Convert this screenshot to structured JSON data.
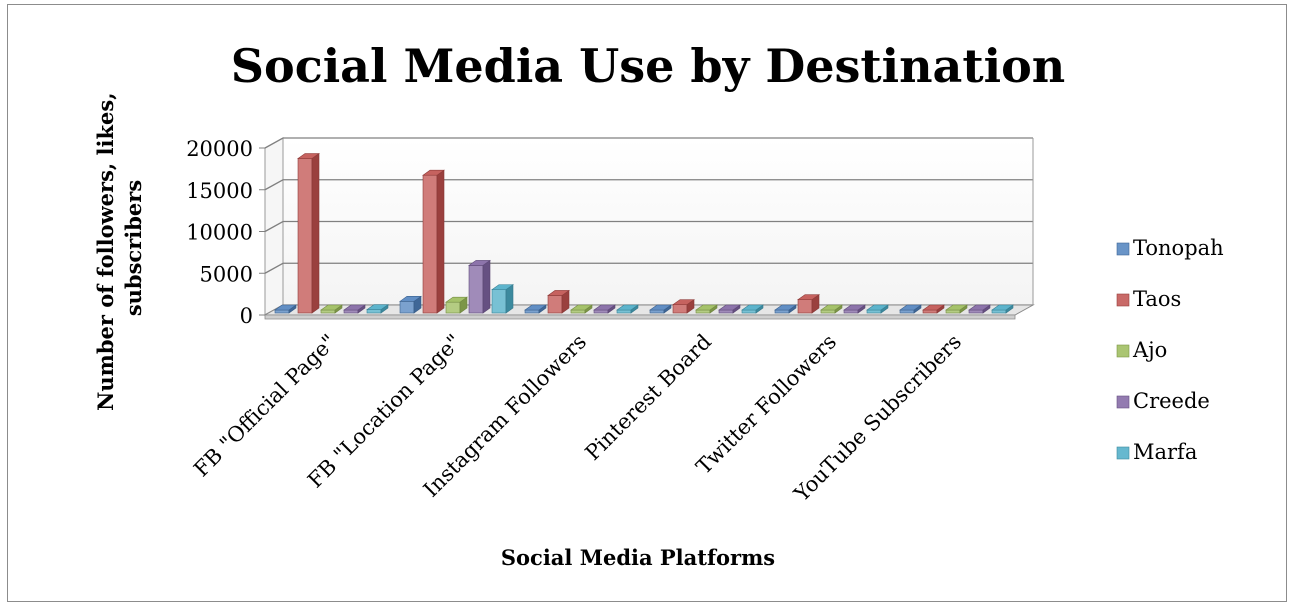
{
  "chart_data": {
    "type": "bar",
    "title": "Social Media Use by Destination",
    "xlabel": "Social Media Platforms",
    "ylabel_lines": [
      "Number of followers, likes,",
      "subscribers"
    ],
    "categories": [
      "FB \"Official Page\"",
      "FB \"Location Page\"",
      "Instagram Followers",
      "Pinterest Board",
      "Twitter Followers",
      "YouTube Subscribers"
    ],
    "ylim": [
      0,
      20000
    ],
    "yticks": [
      "0",
      "5000",
      "10000",
      "15000",
      "20000"
    ],
    "ytick_values": [
      0,
      5000,
      10000,
      15000,
      20000
    ],
    "grid": true,
    "legend_position": "right",
    "series": [
      {
        "name": "Tonopah",
        "color": "#4f81bd",
        "values": [
          0,
          1400,
          0,
          0,
          0,
          0
        ]
      },
      {
        "name": "Taos",
        "color": "#c0504d",
        "values": [
          18500,
          16500,
          2100,
          1000,
          1600,
          100
        ]
      },
      {
        "name": "Ajo",
        "color": "#9bbb59",
        "values": [
          0,
          1300,
          0,
          0,
          100,
          0
        ]
      },
      {
        "name": "Creede",
        "color": "#8064a2",
        "values": [
          0,
          5700,
          0,
          0,
          100,
          0
        ]
      },
      {
        "name": "Marfa",
        "color": "#4bacc6",
        "values": [
          400,
          2800,
          0,
          0,
          0,
          0
        ]
      }
    ]
  }
}
